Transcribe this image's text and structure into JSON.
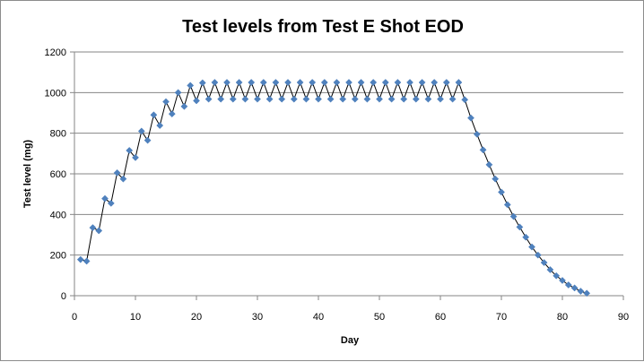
{
  "chart_data": {
    "type": "scatter",
    "title": "Test levels from Test E Shot EOD",
    "xlabel": "Day",
    "ylabel": "Test level (mg)",
    "xlim": [
      0,
      90
    ],
    "ylim": [
      0,
      1200
    ],
    "xticks": [
      0,
      10,
      20,
      30,
      40,
      50,
      60,
      70,
      80,
      90
    ],
    "yticks": [
      0,
      200,
      400,
      600,
      800,
      1000,
      1200
    ],
    "grid": "horizontal",
    "legend": "none",
    "series": [
      {
        "marker_color": "#4f81bd",
        "line_color": "#000000",
        "x": [
          1,
          2,
          3,
          4,
          5,
          6,
          7,
          8,
          9,
          10,
          11,
          12,
          13,
          14,
          15,
          16,
          17,
          18,
          19,
          20,
          21,
          22,
          23,
          24,
          25,
          26,
          27,
          28,
          29,
          30,
          31,
          32,
          33,
          34,
          35,
          36,
          37,
          38,
          39,
          40,
          41,
          42,
          43,
          44,
          45,
          46,
          47,
          48,
          49,
          50,
          51,
          52,
          53,
          54,
          55,
          56,
          57,
          58,
          59,
          60,
          61,
          62,
          63,
          64,
          65,
          66,
          67,
          68,
          69,
          70,
          71,
          72,
          73,
          74,
          75,
          76,
          77,
          78,
          79,
          80,
          81,
          82,
          83,
          84
        ],
        "y": [
          178,
          170,
          335,
          320,
          478,
          455,
          605,
          575,
          715,
          680,
          810,
          765,
          890,
          838,
          955,
          895,
          1000,
          932,
          1035,
          960,
          1048,
          968,
          1050,
          968,
          1050,
          968,
          1050,
          968,
          1050,
          968,
          1050,
          968,
          1050,
          968,
          1050,
          968,
          1050,
          968,
          1050,
          968,
          1050,
          968,
          1050,
          968,
          1050,
          968,
          1050,
          968,
          1050,
          968,
          1050,
          968,
          1050,
          968,
          1050,
          968,
          1050,
          968,
          1050,
          968,
          1050,
          968,
          1050,
          965,
          875,
          795,
          718,
          645,
          575,
          510,
          448,
          390,
          338,
          288,
          240,
          200,
          163,
          128,
          98,
          75,
          53,
          38,
          22,
          12
        ]
      }
    ]
  }
}
